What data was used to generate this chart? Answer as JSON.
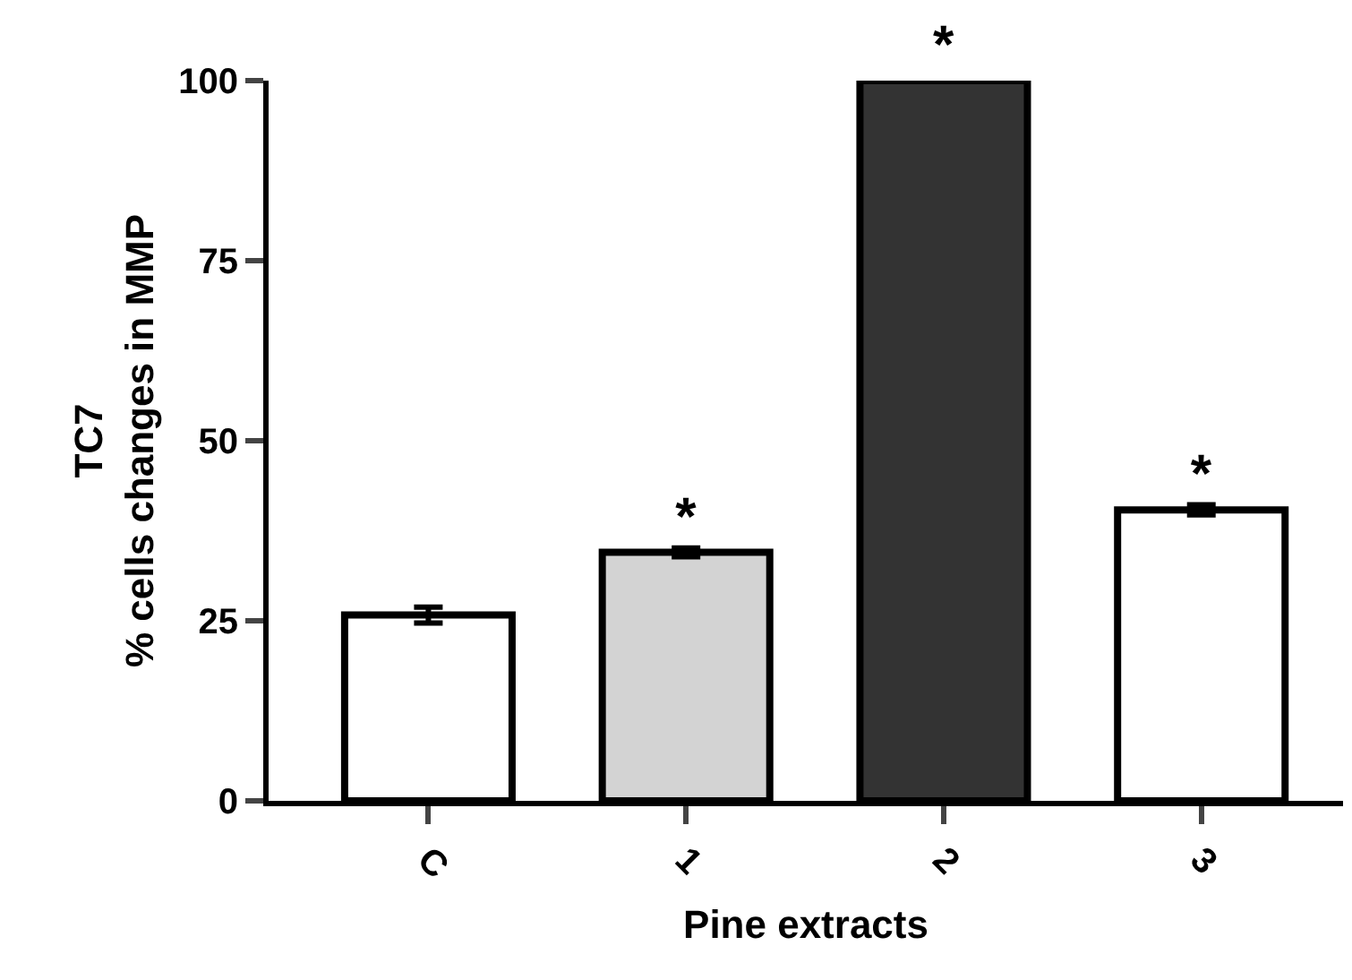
{
  "chart_data": {
    "type": "bar",
    "xlabel": "Pine extracts",
    "ylabel": "TC7\n% cells changes in MMP",
    "categories": [
      "C",
      "1",
      "2",
      "3"
    ],
    "values": [
      25.8,
      34.5,
      100,
      40.4
    ],
    "errors": [
      1.1,
      0.6,
      null,
      0.7
    ],
    "colors": [
      "#ffffff",
      "#d3d3d3",
      "#333333",
      "#ffffff"
    ],
    "ylim": [
      0,
      100
    ],
    "yticks": [
      0,
      25,
      50,
      75,
      100
    ],
    "value_labels": [
      null,
      "*",
      "*",
      "*"
    ]
  }
}
